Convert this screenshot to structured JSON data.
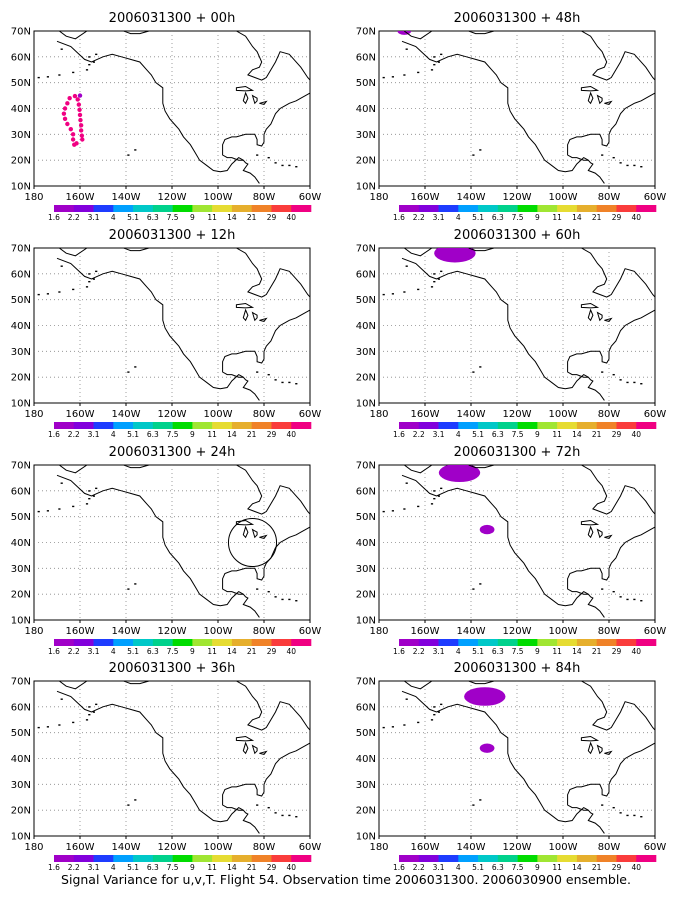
{
  "caption": "Signal Variance for u,v,T. Flight 54. Observation time 2006031300. 2006030900 ensemble.",
  "colors": {
    "levels": [
      "#a000c8",
      "#8200dc",
      "#1e3cff",
      "#00a0ff",
      "#00c8c8",
      "#00d28c",
      "#00dc00",
      "#a0e632",
      "#e6dc32",
      "#e6af2d",
      "#f08228",
      "#fa3c3c",
      "#f00082"
    ]
  },
  "chart_data": [
    {
      "type": "heatmap",
      "title": "2006031300 + 00h",
      "xlim": [
        180,
        300
      ],
      "ylim": [
        10,
        70
      ],
      "xticks": [
        "180",
        "160W",
        "140W",
        "120W",
        "100W",
        "80W",
        "60W"
      ],
      "yticks": [
        "10N",
        "20N",
        "30N",
        "40N",
        "50N",
        "60N",
        "70N"
      ],
      "legend_levels": [
        "1.6",
        "2.2",
        "3.1",
        "4",
        "5.1",
        "6.3",
        "7.5",
        "9",
        "11",
        "14",
        "21",
        "29",
        "40"
      ],
      "features": [
        {
          "kind": "dot-chain",
          "color": "#f00082",
          "approx_center": [
            196,
            37
          ]
        },
        {
          "kind": "dot",
          "color": "#a000c8",
          "lon": 200,
          "lat": 45
        }
      ]
    },
    {
      "type": "heatmap",
      "title": "2006031300 + 48h",
      "xlim": [
        180,
        300
      ],
      "ylim": [
        10,
        70
      ],
      "xticks": [
        "180",
        "160W",
        "140W",
        "120W",
        "100W",
        "80W",
        "60W"
      ],
      "yticks": [
        "10N",
        "20N",
        "30N",
        "40N",
        "50N",
        "60N",
        "70N"
      ],
      "legend_levels": [
        "1.6",
        "2.2",
        "3.1",
        "4",
        "5.1",
        "6.3",
        "7.5",
        "9",
        "11",
        "14",
        "21",
        "29",
        "40"
      ],
      "features": [
        {
          "kind": "blob",
          "color": "#a000c8",
          "approx_center": [
            191,
            70
          ]
        }
      ]
    },
    {
      "type": "heatmap",
      "title": "2006031300 + 12h",
      "xlim": [
        180,
        300
      ],
      "ylim": [
        10,
        70
      ],
      "xticks": [
        "180",
        "160W",
        "140W",
        "120W",
        "100W",
        "80W",
        "60W"
      ],
      "yticks": [
        "10N",
        "20N",
        "30N",
        "40N",
        "50N",
        "60N",
        "70N"
      ],
      "legend_levels": [
        "1.6",
        "2.2",
        "3.1",
        "4",
        "5.1",
        "6.3",
        "7.5",
        "9",
        "11",
        "14",
        "21",
        "29",
        "40"
      ],
      "features": []
    },
    {
      "type": "heatmap",
      "title": "2006031300 + 60h",
      "xlim": [
        180,
        300
      ],
      "ylim": [
        10,
        70
      ],
      "xticks": [
        "180",
        "160W",
        "140W",
        "120W",
        "100W",
        "80W",
        "60W"
      ],
      "yticks": [
        "10N",
        "20N",
        "30N",
        "40N",
        "50N",
        "60N",
        "70N"
      ],
      "legend_levels": [
        "1.6",
        "2.2",
        "3.1",
        "4",
        "5.1",
        "6.3",
        "7.5",
        "9",
        "11",
        "14",
        "21",
        "29",
        "40"
      ],
      "features": [
        {
          "kind": "blob",
          "color": "#a000c8",
          "approx_center": [
            213,
            68
          ]
        }
      ]
    },
    {
      "type": "heatmap",
      "title": "2006031300 + 24h",
      "xlim": [
        180,
        300
      ],
      "ylim": [
        10,
        70
      ],
      "xticks": [
        "180",
        "160W",
        "140W",
        "120W",
        "100W",
        "80W",
        "60W"
      ],
      "yticks": [
        "10N",
        "20N",
        "30N",
        "40N",
        "50N",
        "60N",
        "70N"
      ],
      "legend_levels": [
        "1.6",
        "2.2",
        "3.1",
        "4",
        "5.1",
        "6.3",
        "7.5",
        "9",
        "11",
        "14",
        "21",
        "29",
        "40"
      ],
      "features": [
        {
          "kind": "circle",
          "color": "#000000",
          "approx_center": [
            275,
            40
          ]
        }
      ]
    },
    {
      "type": "heatmap",
      "title": "2006031300 + 72h",
      "xlim": [
        180,
        300
      ],
      "ylim": [
        10,
        70
      ],
      "xticks": [
        "180",
        "160W",
        "140W",
        "120W",
        "100W",
        "80W",
        "60W"
      ],
      "yticks": [
        "10N",
        "20N",
        "30N",
        "40N",
        "50N",
        "60N",
        "70N"
      ],
      "legend_levels": [
        "1.6",
        "2.2",
        "3.1",
        "4",
        "5.1",
        "6.3",
        "7.5",
        "9",
        "11",
        "14",
        "21",
        "29",
        "40"
      ],
      "features": [
        {
          "kind": "blob",
          "color": "#a000c8",
          "approx_center": [
            215,
            67
          ]
        },
        {
          "kind": "blob",
          "color": "#a000c8",
          "approx_center": [
            227,
            45
          ]
        }
      ]
    },
    {
      "type": "heatmap",
      "title": "2006031300 + 36h",
      "xlim": [
        180,
        300
      ],
      "ylim": [
        10,
        70
      ],
      "xticks": [
        "180",
        "160W",
        "140W",
        "120W",
        "100W",
        "80W",
        "60W"
      ],
      "yticks": [
        "10N",
        "20N",
        "30N",
        "40N",
        "50N",
        "60N",
        "70N"
      ],
      "legend_levels": [
        "1.6",
        "2.2",
        "3.1",
        "4",
        "5.1",
        "6.3",
        "7.5",
        "9",
        "11",
        "14",
        "21",
        "29",
        "40"
      ],
      "features": []
    },
    {
      "type": "heatmap",
      "title": "2006031300 + 84h",
      "xlim": [
        180,
        300
      ],
      "ylim": [
        10,
        70
      ],
      "xticks": [
        "180",
        "160W",
        "140W",
        "120W",
        "100W",
        "80W",
        "60W"
      ],
      "yticks": [
        "10N",
        "20N",
        "30N",
        "40N",
        "50N",
        "60N",
        "70N"
      ],
      "legend_levels": [
        "1.6",
        "2.2",
        "3.1",
        "4",
        "5.1",
        "6.3",
        "7.5",
        "9",
        "11",
        "14",
        "21",
        "29",
        "40"
      ],
      "features": [
        {
          "kind": "blob",
          "color": "#a000c8",
          "approx_center": [
            226,
            64
          ]
        },
        {
          "kind": "blob",
          "color": "#a000c8",
          "approx_center": [
            227,
            44
          ]
        }
      ]
    }
  ]
}
